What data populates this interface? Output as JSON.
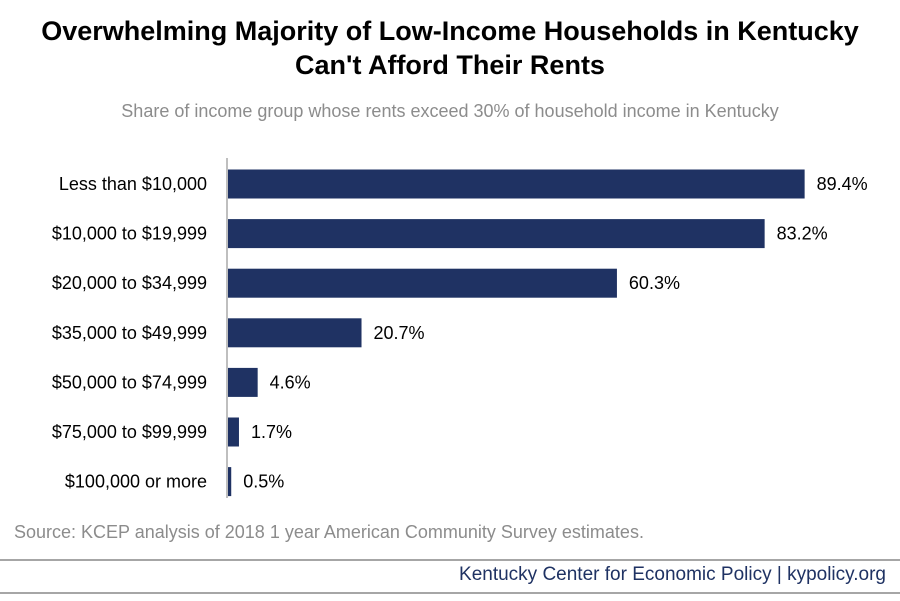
{
  "title_line1": "Overwhelming Majority of Low-Income Households in Kentucky",
  "title_line2": "Can't Afford Their Rents",
  "chart_data": {
    "type": "bar",
    "orientation": "horizontal",
    "title": "Overwhelming Majority of Low-Income Households in Kentucky Can't Afford Their Rents",
    "subtitle": "Share of income group whose rents exceed 30% of household income in Kentucky",
    "categories": [
      "Less than $10,000",
      "$10,000 to $19,999",
      "$20,000 to $34,999",
      "$35,000 to $49,999",
      "$50,000 to $74,999",
      "$75,000 to $99,999",
      "$100,000 or more"
    ],
    "values": [
      89.4,
      83.2,
      60.3,
      20.7,
      4.6,
      1.7,
      0.5
    ],
    "value_labels": [
      "89.4%",
      "83.2%",
      "60.3%",
      "20.7%",
      "4.6%",
      "1.7%",
      "0.5%"
    ],
    "xlim": [
      0,
      100
    ],
    "bar_color": "#1f3263",
    "grid": false,
    "legend": "none"
  },
  "source": "Source: KCEP analysis of 2018 1 year American Community Survey estimates.",
  "footer": "Kentucky Center for Economic Policy | kypolicy.org",
  "colors": {
    "bar": "#1f3263",
    "axis": "#bfbfbf",
    "muted_text": "#8c8c8c",
    "footer_text": "#1f3263"
  }
}
